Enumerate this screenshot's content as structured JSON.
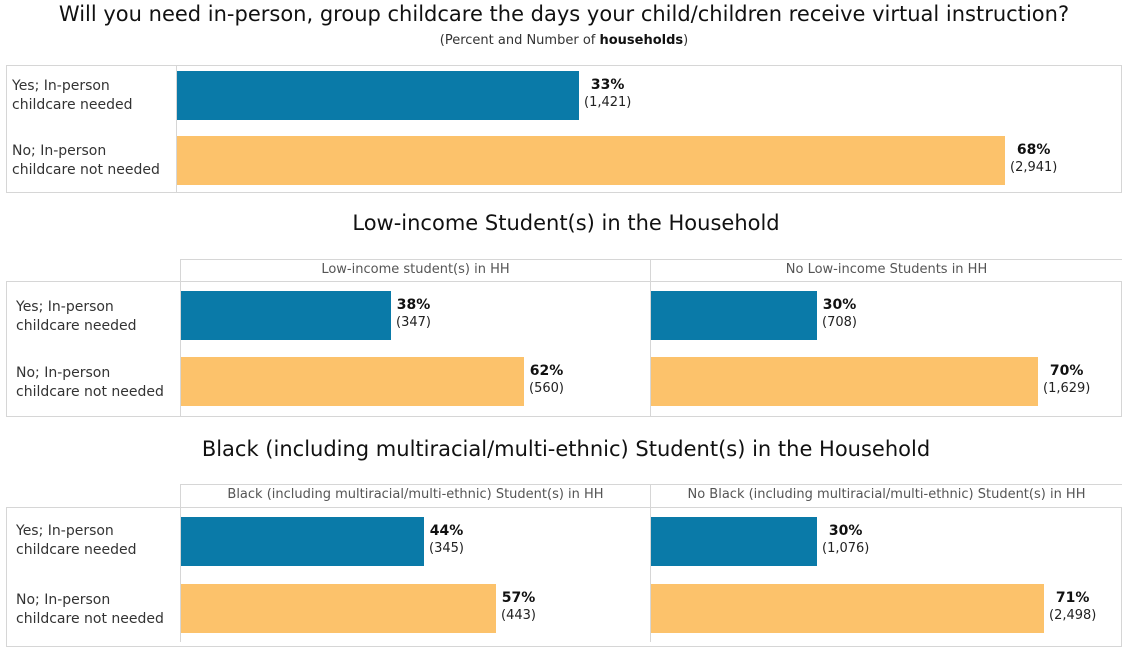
{
  "title": "Will you need in-person, group childcare the days your child/children receive virtual instruction?",
  "subtitle_pre": "(Percent and Number of ",
  "subtitle_bold": "households",
  "subtitle_post": ")",
  "row_labels": [
    {
      "line1": "Yes; In-person",
      "line2": "childcare needed"
    },
    {
      "line1": "No; In-person",
      "line2": "childcare not needed"
    }
  ],
  "colors": {
    "yes": "#0a7aa8",
    "no": "#fcc26b"
  },
  "chart_data": [
    {
      "type": "bar",
      "title": "",
      "categories": [
        "Yes; In-person childcare needed",
        "No; In-person childcare not needed"
      ],
      "series": [
        {
          "values": [
            33,
            68
          ],
          "labels": [
            "33%",
            "68%"
          ],
          "counts": [
            "(1,421)",
            "(2,941)"
          ]
        }
      ]
    },
    {
      "type": "bar",
      "title": "Low-income Student(s) in the Household",
      "categories": [
        "Yes; In-person childcare needed",
        "No; In-person childcare not needed"
      ],
      "series": [
        {
          "name": "Low-income student(s) in HH",
          "values": [
            38,
            62
          ],
          "labels": [
            "38%",
            "62%"
          ],
          "counts": [
            "(347)",
            "(560)"
          ]
        },
        {
          "name": "No Low-income Students in HH",
          "values": [
            30,
            70
          ],
          "labels": [
            "30%",
            "70%"
          ],
          "counts": [
            "(708)",
            "(1,629)"
          ]
        }
      ]
    },
    {
      "type": "bar",
      "title": "Black (including multiracial/multi-ethnic) Student(s) in the Household",
      "categories": [
        "Yes; In-person childcare needed",
        "No; In-person childcare not needed"
      ],
      "series": [
        {
          "name": "Black (including multiracial/multi-ethnic) Student(s) in HH",
          "values": [
            44,
            57
          ],
          "labels": [
            "44%",
            "57%"
          ],
          "counts": [
            "(345)",
            "(443)"
          ]
        },
        {
          "name": "No Black (including multiracial/multi-ethnic) Student(s) in HH",
          "values": [
            30,
            71
          ],
          "labels": [
            "30%",
            "71%"
          ],
          "counts": [
            "(1,076)",
            "(2,498)"
          ]
        }
      ]
    }
  ]
}
